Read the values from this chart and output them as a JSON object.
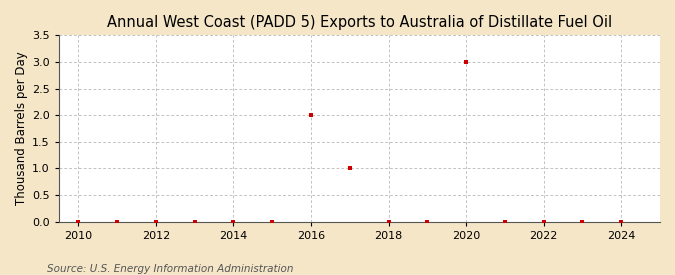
{
  "title": "Annual West Coast (PADD 5) Exports to Australia of Distillate Fuel Oil",
  "ylabel": "Thousand Barrels per Day",
  "source": "Source: U.S. Energy Information Administration",
  "background_color": "#f5e6c8",
  "plot_background_color": "#ffffff",
  "x_data": [
    2010,
    2011,
    2012,
    2013,
    2014,
    2015,
    2016,
    2017,
    2018,
    2019,
    2020,
    2021,
    2022,
    2023,
    2024
  ],
  "y_data": [
    0.0,
    0.0,
    0.0,
    0.0,
    0.0,
    0.0,
    2.0,
    1.0,
    0.0,
    0.0,
    3.0,
    0.0,
    0.0,
    0.0,
    0.0
  ],
  "marker_color": "#cc0000",
  "marker_size": 3,
  "ylim": [
    0.0,
    3.5
  ],
  "yticks": [
    0.0,
    0.5,
    1.0,
    1.5,
    2.0,
    2.5,
    3.0,
    3.5
  ],
  "xlim": [
    2009.5,
    2025.0
  ],
  "xticks": [
    2010,
    2012,
    2014,
    2016,
    2018,
    2020,
    2022,
    2024
  ],
  "grid_color": "#aaaaaa",
  "title_fontsize": 10.5,
  "axis_fontsize": 8.5,
  "tick_fontsize": 8,
  "source_fontsize": 7.5
}
